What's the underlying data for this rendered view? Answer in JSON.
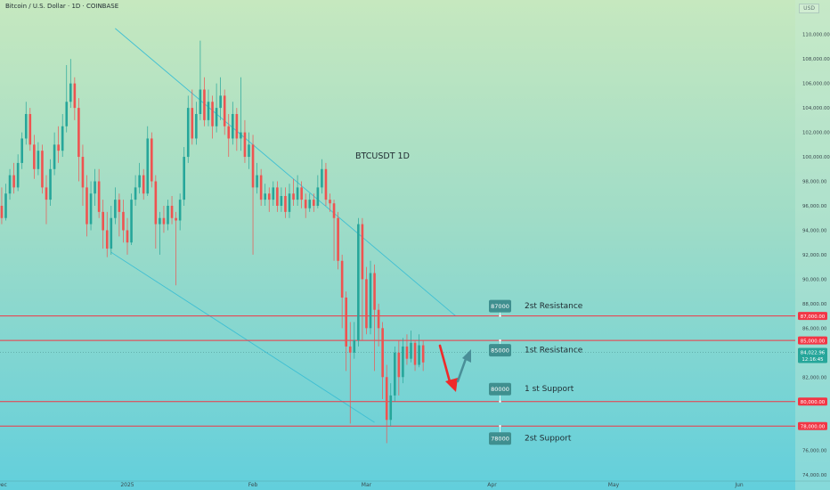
{
  "header": {
    "symbol_title": "Bitcoin / U.S. Dollar · 1D · COINBASE",
    "currency_button": "USD"
  },
  "chart_data": {
    "type": "candlestick",
    "title": "BTCUSDT 1D",
    "ylim": [
      73500,
      111800
    ],
    "y_ticks": [
      {
        "v": 110000,
        "label": "110,000.00"
      },
      {
        "v": 108000,
        "label": "108,000.00"
      },
      {
        "v": 106000,
        "label": "106,000.00"
      },
      {
        "v": 104000,
        "label": "104,000.00"
      },
      {
        "v": 102000,
        "label": "102,000.00"
      },
      {
        "v": 100000,
        "label": "100,000.00"
      },
      {
        "v": 98000,
        "label": "98,000.00"
      },
      {
        "v": 96000,
        "label": "96,000.00"
      },
      {
        "v": 94000,
        "label": "94,000.00"
      },
      {
        "v": 92000,
        "label": "92,000.00"
      },
      {
        "v": 90000,
        "label": "90,000.00"
      },
      {
        "v": 88000,
        "label": "88,000.00"
      },
      {
        "v": 86000,
        "label": "86,000.00"
      },
      {
        "v": 84000,
        "label": "84,000.00"
      },
      {
        "v": 82000,
        "label": "82,000.00"
      },
      {
        "v": 78000,
        "label": "78,000.00"
      },
      {
        "v": 76000,
        "label": "76,000.00"
      },
      {
        "v": 74000,
        "label": "74,000.00"
      }
    ],
    "x_ticks": [
      {
        "day": -31,
        "label": "Dec"
      },
      {
        "day": 0,
        "label": "2025"
      },
      {
        "day": 31,
        "label": "Feb"
      },
      {
        "day": 59,
        "label": "Mar"
      },
      {
        "day": 90,
        "label": "Apr"
      },
      {
        "day": 120,
        "label": "May"
      },
      {
        "day": 151,
        "label": "Jun"
      }
    ],
    "candles": [
      [
        -31,
        96000,
        95000,
        97500,
        94500
      ],
      [
        -30,
        95000,
        97000,
        97800,
        94800
      ],
      [
        -29,
        97000,
        98500,
        99000,
        96500
      ],
      [
        -28,
        98500,
        97500,
        99500,
        97000
      ],
      [
        -27,
        97500,
        99500,
        100200,
        97200
      ],
      [
        -26,
        99500,
        101500,
        102000,
        99000
      ],
      [
        -25,
        101500,
        103500,
        104500,
        101000
      ],
      [
        -24,
        103500,
        101000,
        104000,
        100500
      ],
      [
        -23,
        101000,
        99000,
        101800,
        98200
      ],
      [
        -22,
        99000,
        100500,
        101200,
        98500
      ],
      [
        -21,
        100500,
        97500,
        101000,
        97000
      ],
      [
        -20,
        97500,
        96500,
        98500,
        94500
      ],
      [
        -19,
        96500,
        99000,
        99800,
        96000
      ],
      [
        -18,
        99000,
        101000,
        102000,
        98500
      ],
      [
        -17,
        101000,
        100500,
        102500,
        99500
      ],
      [
        -16,
        100500,
        102500,
        103500,
        100000
      ],
      [
        -15,
        102500,
        104500,
        107500,
        102000
      ],
      [
        -14,
        104500,
        106000,
        108000,
        104000
      ],
      [
        -13,
        106000,
        104000,
        106500,
        103000
      ],
      [
        -12,
        104000,
        100000,
        104800,
        98000
      ],
      [
        -11,
        100000,
        97500,
        101000,
        96000
      ],
      [
        -10,
        97500,
        94500,
        98500,
        93500
      ],
      [
        -9,
        94500,
        97000,
        98000,
        94000
      ],
      [
        -8,
        97000,
        98000,
        99000,
        96000
      ],
      [
        -7,
        98000,
        95500,
        99000,
        95000
      ],
      [
        -6,
        95500,
        94000,
        96500,
        92500
      ],
      [
        -5,
        94000,
        92500,
        95500,
        91800
      ],
      [
        -4,
        92500,
        95000,
        96000,
        92000
      ],
      [
        -3,
        95000,
        96500,
        97500,
        94500
      ],
      [
        -2,
        96500,
        95500,
        97000,
        93500
      ],
      [
        -1,
        95500,
        94000,
        96500,
        93000
      ],
      [
        0,
        94000,
        93000,
        95000,
        92000
      ],
      [
        1,
        93000,
        96500,
        97000,
        92800
      ],
      [
        2,
        96500,
        97500,
        98500,
        96000
      ],
      [
        3,
        97500,
        98500,
        99500,
        97000
      ],
      [
        4,
        98500,
        97000,
        99000,
        96500
      ],
      [
        5,
        97000,
        101500,
        102500,
        96800
      ],
      [
        6,
        101500,
        98000,
        102000,
        97500
      ],
      [
        7,
        98000,
        94500,
        98500,
        92500
      ],
      [
        8,
        94500,
        95000,
        95500,
        92000
      ],
      [
        9,
        95000,
        94500,
        96000,
        93800
      ],
      [
        10,
        94500,
        96000,
        96500,
        94000
      ],
      [
        11,
        96000,
        95000,
        96800,
        94500
      ],
      [
        12,
        95000,
        94800,
        95500,
        89500
      ],
      [
        13,
        94800,
        96500,
        97000,
        94000
      ],
      [
        14,
        96500,
        100000,
        100800,
        96000
      ],
      [
        15,
        100000,
        104000,
        105000,
        99500
      ],
      [
        16,
        104000,
        101500,
        105500,
        101000
      ],
      [
        17,
        101500,
        103500,
        104500,
        101000
      ],
      [
        18,
        103500,
        105500,
        109500,
        103000
      ],
      [
        19,
        105500,
        103000,
        106500,
        102500
      ],
      [
        20,
        103000,
        104500,
        105500,
        102500
      ],
      [
        21,
        104500,
        102500,
        105000,
        101500
      ],
      [
        22,
        102500,
        104000,
        106000,
        102000
      ],
      [
        23,
        104000,
        105000,
        106500,
        103000
      ],
      [
        24,
        105000,
        102500,
        105500,
        101800
      ],
      [
        25,
        102500,
        101500,
        103500,
        100000
      ],
      [
        26,
        101500,
        103500,
        104500,
        101000
      ],
      [
        27,
        103500,
        101500,
        104000,
        100500
      ],
      [
        28,
        101500,
        102000,
        106500,
        100500
      ],
      [
        29,
        102000,
        100000,
        103000,
        99500
      ],
      [
        30,
        100000,
        101000,
        102000,
        99000
      ],
      [
        31,
        101000,
        97500,
        101800,
        92000
      ],
      [
        32,
        97500,
        98500,
        99500,
        97000
      ],
      [
        33,
        98500,
        96500,
        99000,
        96000
      ],
      [
        34,
        96500,
        97000,
        97800,
        96000
      ],
      [
        35,
        97000,
        96500,
        97500,
        95500
      ],
      [
        36,
        96500,
        97500,
        98000,
        96000
      ],
      [
        37,
        97500,
        96000,
        98000,
        95500
      ],
      [
        38,
        96000,
        96800,
        97500,
        95500
      ],
      [
        39,
        96800,
        95500,
        97500,
        95000
      ],
      [
        40,
        95500,
        97000,
        97800,
        95000
      ],
      [
        41,
        97000,
        96500,
        98200,
        96000
      ],
      [
        42,
        96500,
        97500,
        98500,
        96000
      ],
      [
        43,
        97500,
        96500,
        98000,
        95800
      ],
      [
        44,
        96500,
        95800,
        97000,
        95000
      ],
      [
        45,
        95800,
        96500,
        97000,
        95500
      ],
      [
        46,
        96500,
        96000,
        97000,
        95500
      ],
      [
        47,
        96000,
        97500,
        98500,
        95800
      ],
      [
        48,
        97500,
        99000,
        99800,
        97000
      ],
      [
        49,
        99000,
        96500,
        99500,
        96000
      ],
      [
        50,
        96500,
        96200,
        97000,
        95500
      ],
      [
        51,
        96200,
        95000,
        96500,
        91500
      ],
      [
        52,
        95000,
        91500,
        95500,
        90800
      ],
      [
        53,
        91500,
        88500,
        92000,
        86000
      ],
      [
        54,
        88500,
        84500,
        89000,
        82500
      ],
      [
        55,
        84500,
        84000,
        86500,
        78200
      ],
      [
        56,
        84000,
        85000,
        86500,
        83500
      ],
      [
        57,
        85000,
        94500,
        95000,
        84500
      ],
      [
        58,
        94500,
        90000,
        95000,
        85000
      ],
      [
        59,
        90000,
        86000,
        91000,
        85500
      ],
      [
        60,
        86000,
        90500,
        91500,
        85500
      ],
      [
        61,
        90500,
        87500,
        91200,
        82500
      ],
      [
        62,
        87500,
        86000,
        88000,
        84500
      ],
      [
        63,
        86000,
        82000,
        86500,
        80200
      ],
      [
        64,
        82000,
        78500,
        83000,
        76600
      ],
      [
        65,
        78500,
        80500,
        81500,
        78000
      ],
      [
        66,
        80500,
        84000,
        84500,
        80000
      ],
      [
        67,
        84000,
        82000,
        85000,
        80500
      ],
      [
        68,
        82000,
        84500,
        85200,
        81500
      ],
      [
        69,
        84500,
        83500,
        85500,
        83000
      ],
      [
        70,
        83500,
        84800,
        85800,
        83200
      ],
      [
        71,
        84800,
        83000,
        85000,
        82500
      ],
      [
        72,
        83000,
        84600,
        85500,
        82800
      ],
      [
        73,
        84600,
        83200,
        85000,
        82500
      ]
    ],
    "levels": [
      {
        "value": 87000,
        "label": "87,000.00",
        "zone_value": "87000",
        "zone_label": "2st Resistance"
      },
      {
        "value": 85000,
        "label": "85,000.00",
        "zone_value": "85000",
        "zone_label": "1st Resistance"
      },
      {
        "value": 80000,
        "label": "80,000.00",
        "zone_value": "80000",
        "zone_label": "1 st Support"
      },
      {
        "value": 78000,
        "label": "78,000.00",
        "zone_value": "78000",
        "zone_label": "2st Support"
      }
    ],
    "last_price": {
      "value": 84022.96,
      "label": "84,022.96",
      "countdown": "12:16:45"
    },
    "trendlines": [
      {
        "from": [
          -3,
          110500
        ],
        "to": [
          81,
          87000
        ]
      },
      {
        "from": [
          -4,
          92200
        ],
        "to": [
          61,
          78300
        ]
      }
    ],
    "colors": {
      "up": "#26a69a",
      "down": "#ef5350",
      "level_line": "#f23645",
      "trendline": "#3fbfd3",
      "zone_box": "#3f8f8f"
    }
  }
}
